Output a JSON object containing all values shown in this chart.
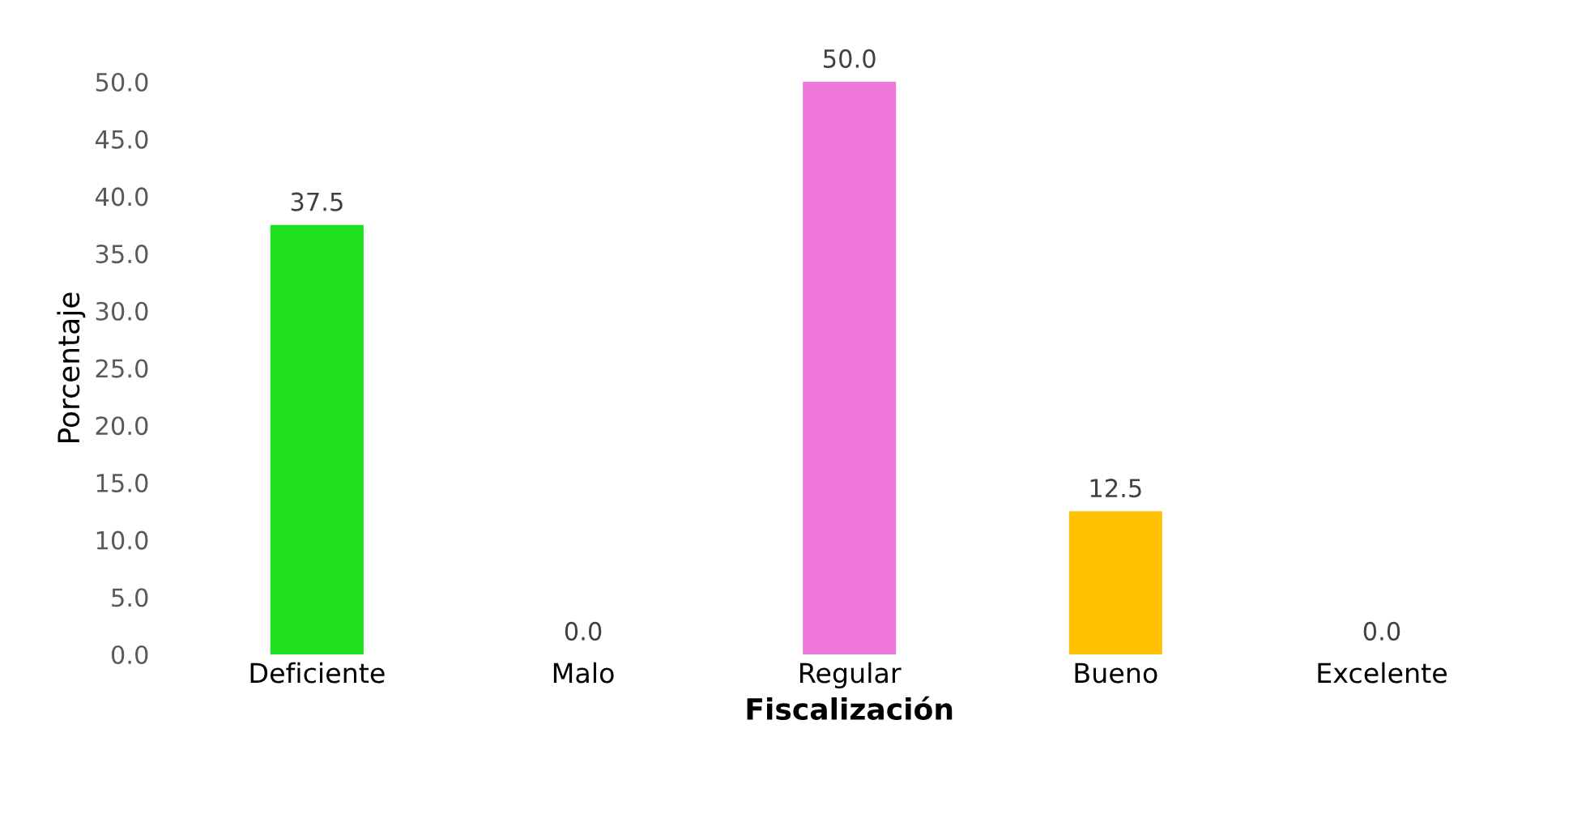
{
  "chart_data": {
    "type": "bar",
    "xlabel": "Fiscalización",
    "ylabel": "Porcentaje",
    "categories": [
      "Deficiente",
      "Malo",
      "Regular",
      "Bueno",
      "Excelente"
    ],
    "values": [
      37.5,
      0.0,
      50.0,
      12.5,
      0.0
    ],
    "colors": [
      "#1ee01e",
      "#1f2d6b",
      "#f078dc",
      "#ffc000",
      "#1f2d6b"
    ],
    "ylim": [
      0,
      50
    ],
    "yticks": [
      {
        "value": 0,
        "label": "0.0"
      },
      {
        "value": 5,
        "label": "5.0"
      },
      {
        "value": 10,
        "label": "10.0"
      },
      {
        "value": 15,
        "label": "15.0"
      },
      {
        "value": 20,
        "label": "20.0"
      },
      {
        "value": 25,
        "label": "25.0"
      },
      {
        "value": 30,
        "label": "30.0"
      },
      {
        "value": 35,
        "label": "35.0"
      },
      {
        "value": 40,
        "label": "40.0"
      },
      {
        "value": 45,
        "label": "45.0"
      },
      {
        "value": 50,
        "label": "50.0"
      }
    ],
    "value_labels": [
      "37.5",
      "0.0",
      "50.0",
      "12.5",
      "0.0"
    ],
    "grid": false,
    "legend": false
  }
}
